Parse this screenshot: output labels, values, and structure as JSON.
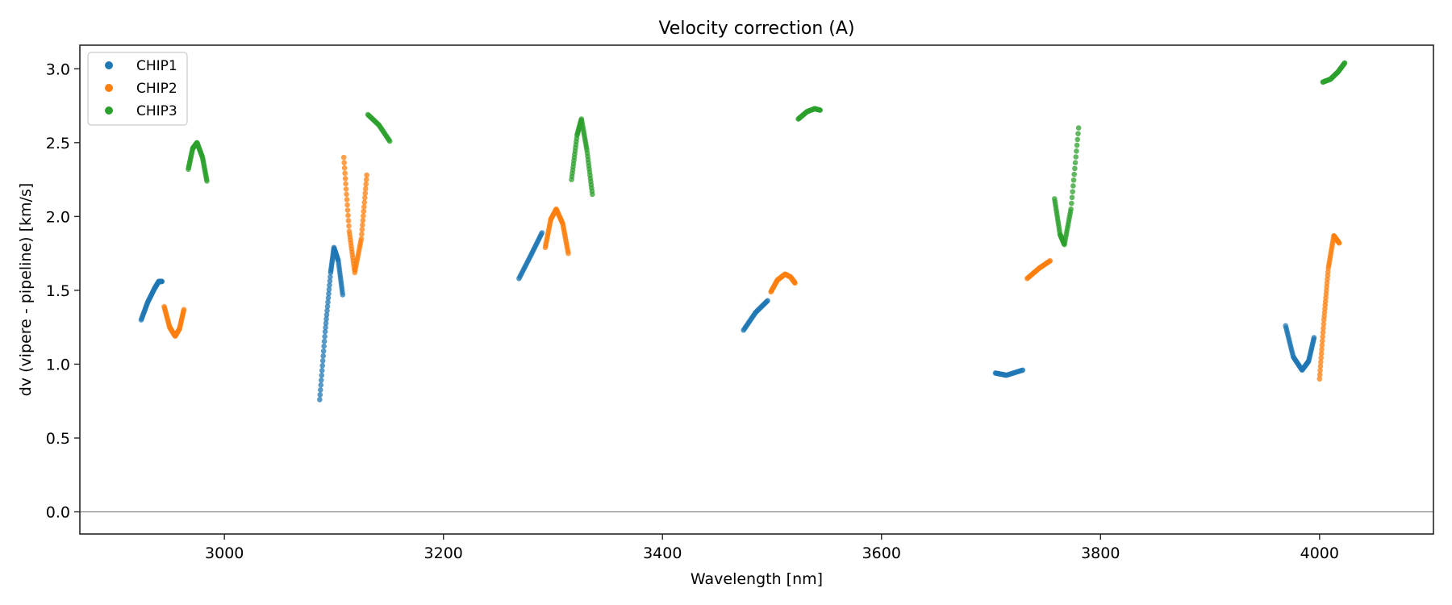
{
  "chart_data": {
    "type": "scatter",
    "title": "Velocity correction (A)",
    "xlabel": "Wavelength [nm]",
    "ylabel": "dv (vipere - pipeline) [km/s]",
    "xlim": [
      2868,
      4104
    ],
    "ylim": [
      -0.15,
      3.16
    ],
    "xticks": [
      3000,
      3200,
      3400,
      3600,
      3800,
      4000
    ],
    "xtick_labels": [
      "3000",
      "3200",
      "3400",
      "3600",
      "3800",
      "4000"
    ],
    "yticks": [
      0.0,
      0.5,
      1.0,
      1.5,
      2.0,
      2.5,
      3.0
    ],
    "ytick_labels": [
      "0.0",
      "0.5",
      "1.0",
      "1.5",
      "2.0",
      "2.5",
      "3.0"
    ],
    "hline": 0.0,
    "grid": false,
    "legend_position": "top-left",
    "series": [
      {
        "name": "CHIP1",
        "color": "#1f77b4",
        "segments": [
          {
            "x": [
              2924,
              2930,
              2936,
              2940,
              2943
            ],
            "y": [
              1.3,
              1.42,
              1.51,
              1.56,
              1.56
            ]
          },
          {
            "x": [
              3087,
              3092,
              3097,
              3100,
              3104,
              3108
            ],
            "y": [
              0.76,
              1.22,
              1.62,
              1.79,
              1.7,
              1.47
            ]
          },
          {
            "x": [
              3269,
              3280,
              3290
            ],
            "y": [
              1.58,
              1.74,
              1.89
            ]
          },
          {
            "x": [
              3474,
              3485,
              3496
            ],
            "y": [
              1.23,
              1.35,
              1.43
            ]
          },
          {
            "x": [
              3704,
              3714,
              3729
            ],
            "y": [
              0.94,
              0.925,
              0.96
            ]
          },
          {
            "x": [
              3969,
              3976,
              3984,
              3990,
              3995
            ],
            "y": [
              1.26,
              1.05,
              0.96,
              1.02,
              1.18
            ]
          }
        ]
      },
      {
        "name": "CHIP2",
        "color": "#ff7f0e",
        "segments": [
          {
            "x": [
              2945,
              2950,
              2955,
              2959,
              2963
            ],
            "y": [
              1.39,
              1.25,
              1.19,
              1.24,
              1.37
            ]
          },
          {
            "x": [
              3109,
              3114,
              3119,
              3125,
              3130
            ],
            "y": [
              2.4,
              1.9,
              1.62,
              1.85,
              2.28
            ]
          },
          {
            "x": [
              3293,
              3298,
              3303,
              3309,
              3314
            ],
            "y": [
              1.79,
              1.98,
              2.05,
              1.95,
              1.75
            ]
          },
          {
            "x": [
              3499,
              3505,
              3512,
              3517,
              3521
            ],
            "y": [
              1.49,
              1.57,
              1.61,
              1.59,
              1.55
            ]
          },
          {
            "x": [
              3733,
              3744,
              3754
            ],
            "y": [
              1.58,
              1.65,
              1.7
            ]
          },
          {
            "x": [
              4000,
              4004,
              4008,
              4013,
              4018
            ],
            "y": [
              0.9,
              1.3,
              1.65,
              1.87,
              1.82
            ]
          }
        ]
      },
      {
        "name": "CHIP3",
        "color": "#2ca02c",
        "segments": [
          {
            "x": [
              2967,
              2971,
              2975,
              2980,
              2984
            ],
            "y": [
              2.32,
              2.46,
              2.5,
              2.4,
              2.24
            ]
          },
          {
            "x": [
              3131,
              3141,
              3151
            ],
            "y": [
              2.69,
              2.62,
              2.51
            ]
          },
          {
            "x": [
              3317,
              3322,
              3326,
              3331,
              3336
            ],
            "y": [
              2.25,
              2.55,
              2.66,
              2.45,
              2.15
            ]
          },
          {
            "x": [
              3524,
              3532,
              3539,
              3544
            ],
            "y": [
              2.66,
              2.71,
              2.73,
              2.72
            ]
          },
          {
            "x": [
              3758,
              3763,
              3767,
              3773,
              3780
            ],
            "y": [
              2.12,
              1.88,
              1.81,
              2.05,
              2.6
            ]
          },
          {
            "x": [
              4003,
              4010,
              4017,
              4023
            ],
            "y": [
              2.91,
              2.93,
              2.98,
              3.04
            ]
          }
        ]
      }
    ]
  }
}
